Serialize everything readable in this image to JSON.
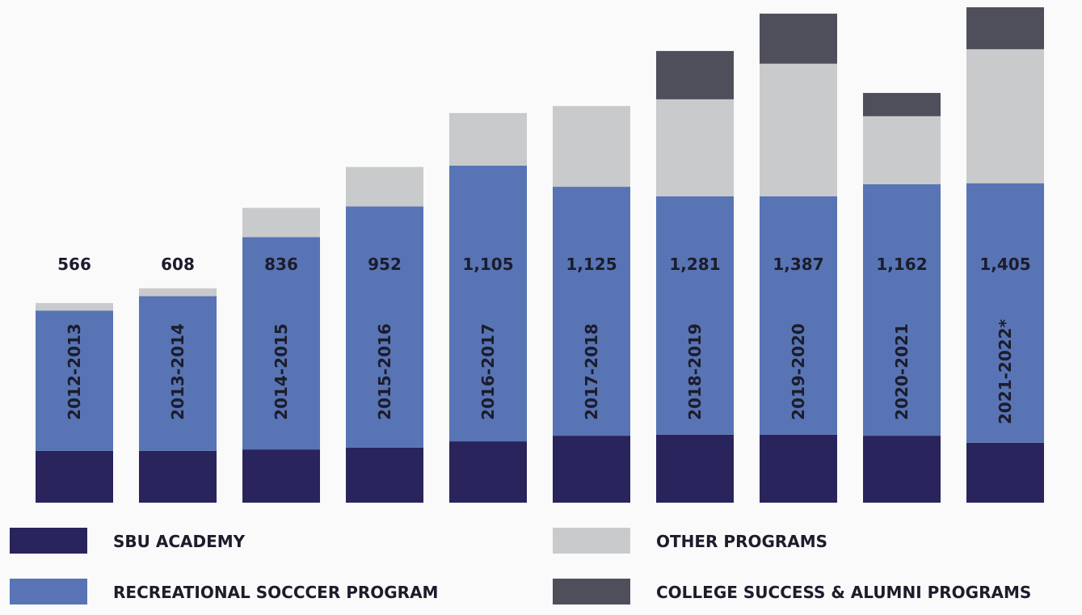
{
  "chart_data": {
    "type": "stacked_bar",
    "categories": [
      "2012-2013",
      "2013-2014",
      "2014-2015",
      "2015-2016",
      "2016-2017",
      "2017-2018",
      "2018-2019",
      "2019-2020",
      "2020-2021",
      "2021-2022*"
    ],
    "totals": [
      566,
      608,
      836,
      952,
      1105,
      1125,
      1281,
      1387,
      1162,
      1405
    ],
    "total_labels": [
      "566",
      "608",
      "836",
      "952",
      "1,105",
      "1,125",
      "1,281",
      "1,387",
      "1,162",
      "1,405"
    ],
    "series": [
      {
        "name": "SBU ACADEMY",
        "color": "#29245c",
        "values": [
          147,
          147,
          151,
          156,
          174,
          190,
          193,
          193,
          190,
          170
        ]
      },
      {
        "name": "RECREATIONAL SOCCCER PROGRAM",
        "color": "#5874b4",
        "values": [
          398,
          439,
          602,
          684,
          782,
          706,
          676,
          676,
          713,
          736
        ]
      },
      {
        "name": "OTHER PROGRAMS",
        "color": "#c9cacc",
        "values": [
          21,
          22,
          83,
          112,
          149,
          229,
          275,
          376,
          193,
          380
        ]
      },
      {
        "name": "COLLEGE SUCCESS & ALUMNI PROGRAMS",
        "color": "#4e4f5b",
        "values": [
          null,
          null,
          null,
          null,
          null,
          null,
          137,
          142,
          66,
          119
        ]
      }
    ]
  }
}
